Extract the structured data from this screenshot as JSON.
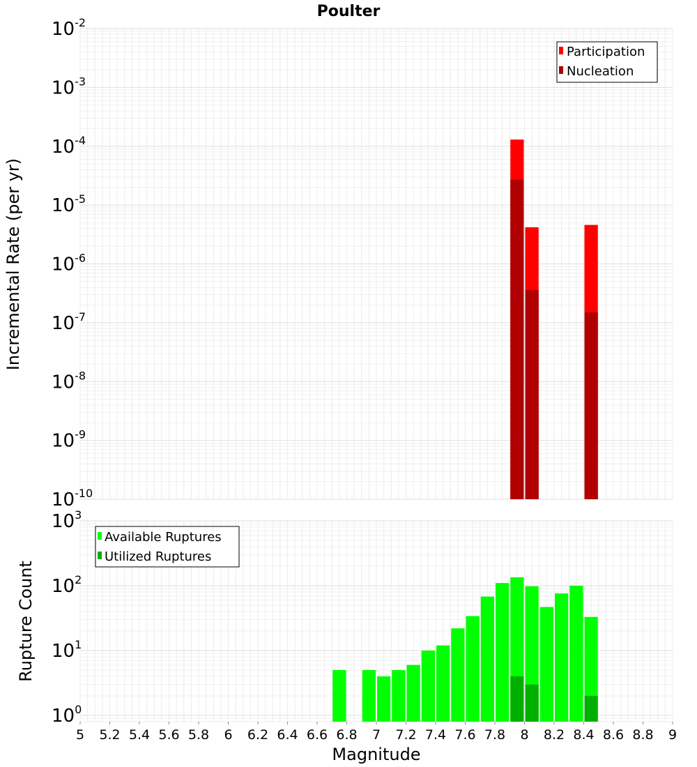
{
  "chart_data": [
    {
      "type": "bar",
      "title": "Poulter",
      "ylabel": "Incremental Rate (per yr)",
      "xlim": [
        5,
        9
      ],
      "ylim": [
        1e-10,
        0.01
      ],
      "yscale": "log",
      "grid": true,
      "legend_position": "top-right",
      "y_tick_exponents": [
        "-10",
        "-9",
        "-8",
        "-7",
        "-6",
        "-5",
        "-4",
        "-3",
        "-2"
      ],
      "y_tick_base": "10",
      "series": [
        {
          "name": "Participation",
          "color": "#ff0000",
          "points": [
            {
              "x": 7.95,
              "y": 0.00013
            },
            {
              "x": 8.05,
              "y": 4.2e-06
            },
            {
              "x": 8.45,
              "y": 4.6e-06
            }
          ]
        },
        {
          "name": "Nucleation",
          "color": "#b00000",
          "points": [
            {
              "x": 7.95,
              "y": 2.7e-05
            },
            {
              "x": 8.05,
              "y": 3.6e-07
            },
            {
              "x": 8.45,
              "y": 1.5e-07
            }
          ]
        }
      ]
    },
    {
      "type": "bar",
      "xlabel": "Magnitude",
      "ylabel": "Rupture Count",
      "xlim": [
        5,
        9
      ],
      "ylim": [
        0.8,
        1000
      ],
      "yscale": "log",
      "grid": true,
      "legend_position": "top-left",
      "x_ticks": [
        "5",
        "5.2",
        "5.4",
        "5.6",
        "5.8",
        "6",
        "6.2",
        "6.4",
        "6.6",
        "6.8",
        "7",
        "7.2",
        "7.4",
        "7.6",
        "7.8",
        "8",
        "8.2",
        "8.4",
        "8.6",
        "8.8",
        "9"
      ],
      "y_tick_exponents": [
        "0",
        "1",
        "2",
        "3"
      ],
      "y_tick_base": "10",
      "series": [
        {
          "name": "Available Ruptures",
          "color": "#00ff00",
          "points": [
            {
              "x": 6.75,
              "y": 5
            },
            {
              "x": 6.95,
              "y": 5
            },
            {
              "x": 7.05,
              "y": 4
            },
            {
              "x": 7.15,
              "y": 5
            },
            {
              "x": 7.25,
              "y": 6
            },
            {
              "x": 7.35,
              "y": 10
            },
            {
              "x": 7.45,
              "y": 12
            },
            {
              "x": 7.55,
              "y": 22
            },
            {
              "x": 7.65,
              "y": 34
            },
            {
              "x": 7.75,
              "y": 68
            },
            {
              "x": 7.85,
              "y": 110
            },
            {
              "x": 7.95,
              "y": 135
            },
            {
              "x": 8.05,
              "y": 98
            },
            {
              "x": 8.15,
              "y": 47
            },
            {
              "x": 8.25,
              "y": 76
            },
            {
              "x": 8.35,
              "y": 100
            },
            {
              "x": 8.45,
              "y": 33
            }
          ]
        },
        {
          "name": "Utilized Ruptures",
          "color": "#00b000",
          "points": [
            {
              "x": 7.95,
              "y": 4
            },
            {
              "x": 8.05,
              "y": 3
            },
            {
              "x": 8.45,
              "y": 2
            }
          ]
        }
      ]
    }
  ]
}
